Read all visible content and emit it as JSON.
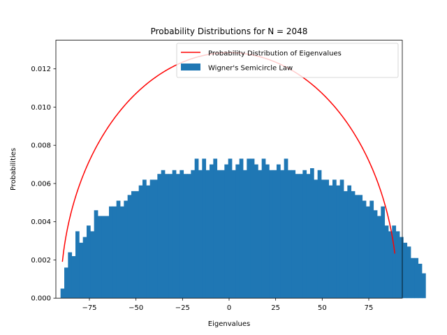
{
  "chart_data": {
    "type": "bar",
    "title": "Probability Distributions for N = 2048",
    "xlabel": "Eigenvalues",
    "ylabel": "Probabilities",
    "xlim": [
      -93,
      93
    ],
    "ylim": [
      0,
      0.0135
    ],
    "xticks": [
      -75,
      -50,
      -25,
      0,
      25,
      50,
      75
    ],
    "yticks": [
      0.0,
      0.002,
      0.004,
      0.006,
      0.008,
      0.01,
      0.012
    ],
    "ytick_labels": [
      "0.000",
      "0.002",
      "0.004",
      "0.006",
      "0.008",
      "0.010",
      "0.012"
    ],
    "grid": false,
    "legend_position": "top-right",
    "series": [
      {
        "name": "Probability Distribution of Eigenvalues",
        "kind": "line",
        "color": "#ff0000",
        "radius": 90.5,
        "peak": 0.01285,
        "x_range": [
          -89.5,
          89.0
        ]
      },
      {
        "name": "Wigner's Semicircle Law",
        "kind": "histogram",
        "color": "#1f77b4",
        "bin_start": -90.5,
        "bin_width": 2.0,
        "values": [
          0.0005,
          0.0016,
          0.0024,
          0.0022,
          0.0035,
          0.0029,
          0.0032,
          0.0038,
          0.0035,
          0.0046,
          0.0043,
          0.0043,
          0.0043,
          0.0048,
          0.0048,
          0.0051,
          0.0048,
          0.0051,
          0.0054,
          0.0056,
          0.0056,
          0.0059,
          0.0062,
          0.0059,
          0.0062,
          0.0062,
          0.0065,
          0.0067,
          0.0065,
          0.0065,
          0.0067,
          0.0065,
          0.0067,
          0.0065,
          0.0065,
          0.0067,
          0.0073,
          0.0067,
          0.0073,
          0.0067,
          0.007,
          0.0073,
          0.0067,
          0.0067,
          0.007,
          0.0073,
          0.0067,
          0.007,
          0.0073,
          0.0067,
          0.0073,
          0.0073,
          0.007,
          0.0067,
          0.0073,
          0.007,
          0.0067,
          0.0067,
          0.007,
          0.0067,
          0.0073,
          0.0067,
          0.0067,
          0.0065,
          0.0065,
          0.0067,
          0.0065,
          0.0068,
          0.0062,
          0.0067,
          0.0062,
          0.0062,
          0.0059,
          0.0062,
          0.0059,
          0.0062,
          0.0056,
          0.0059,
          0.0056,
          0.0054,
          0.0054,
          0.0051,
          0.0048,
          0.0051,
          0.0046,
          0.0043,
          0.0048,
          0.0038,
          0.0035,
          0.0038,
          0.0035,
          0.0032,
          0.0029,
          0.0027,
          0.0021,
          0.0021,
          0.0018,
          0.0013
        ]
      }
    ]
  }
}
